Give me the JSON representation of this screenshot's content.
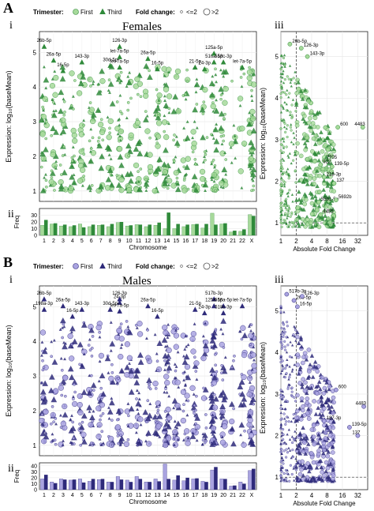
{
  "colors": {
    "female_first": "#a6d99a",
    "female_third": "#2f8a3a",
    "male_first": "#a9a3e0",
    "male_third": "#2e2a7a",
    "grid": "#e6e6e6",
    "panel_border": "#222222"
  },
  "chromosomes": [
    "1",
    "2",
    "3",
    "4",
    "5",
    "6",
    "7",
    "8",
    "9",
    "10",
    "11",
    "12",
    "13",
    "14",
    "15",
    "16",
    "17",
    "18",
    "19",
    "20",
    "21",
    "22",
    "X"
  ],
  "legend": {
    "trimester_title": "Trimester:",
    "first": "First",
    "third": "Third",
    "fold_title": "Fold change:",
    "small": "<=2",
    "large": ">2"
  },
  "panels": {
    "females": {
      "letter": "A",
      "title": "Females",
      "sub_i": "i",
      "sub_ii": "ii",
      "sub_iii": "iii",
      "ylabel": "Expression: log₁₀(baseMean)",
      "xlabel_chrom": "Chromosome",
      "ylabel_freq": "Freq",
      "xlabel_fold": "Absolute Fold Change",
      "yticks": [
        "1",
        "2",
        "3",
        "4",
        "5"
      ],
      "freq_ticks": [
        "0",
        "10",
        "20",
        "30"
      ],
      "fold_ticks": [
        "1",
        "2",
        "4",
        "8",
        "16",
        "32"
      ],
      "chrom_labels": [
        "26b-5p",
        "26a-5p",
        "16-5p",
        "143-3p",
        "126-3p",
        "let-7a-5p",
        "30d-5p",
        "let-7a-5p",
        "26a-5p",
        "16-5p",
        "21-5p",
        "516a-5p",
        "24-3p",
        "125a-5p",
        "518c-3p",
        "let-7a-5p"
      ],
      "fold_labels": [
        "26b-5p",
        "126-3p",
        "143-3p",
        "600",
        "4483",
        "7705",
        "922",
        "139-5p",
        "218-3p",
        "137",
        "5591-5p",
        "5692b",
        "4455"
      ]
    },
    "males": {
      "letter": "B",
      "title": "Males",
      "sub_i": "i",
      "sub_ii": "ii",
      "sub_iii": "iii",
      "ylabel": "Expression: log₁₀(baseMean)",
      "xlabel_chrom": "Chromosome",
      "ylabel_freq": "Freq",
      "xlabel_fold": "Absolute Fold Change",
      "yticks": [
        "1",
        "2",
        "3",
        "4",
        "5"
      ],
      "freq_ticks": [
        "0",
        "10",
        "20",
        "30",
        "40"
      ],
      "fold_ticks": [
        "1",
        "2",
        "4",
        "8",
        "16",
        "32"
      ],
      "chrom_labels": [
        "26b-5p",
        "198a-3p",
        "26a-5p",
        "16-5p",
        "143-3p",
        "126-3p",
        "30d-5p",
        "24-3p",
        "let-7a-5p",
        "26a-5p",
        "16-5p",
        "517b-3p",
        "21-5p",
        "125a-5p",
        "24-3p",
        "516a-5p",
        "518c-3p",
        "let-7a-5p"
      ],
      "fold_labels": [
        "517b-3p",
        "26b-5p",
        "126-3p",
        "16-5p",
        "600",
        "4483",
        "187-3p",
        "139-5p",
        "137"
      ]
    }
  },
  "chart_data": [
    {
      "id": "females-freq",
      "type": "bar",
      "ylabel": "Freq",
      "xlabel": "Chromosome",
      "ylim": [
        0,
        40
      ],
      "categories": [
        "1",
        "2",
        "3",
        "4",
        "5",
        "6",
        "7",
        "8",
        "9",
        "10",
        "11",
        "12",
        "13",
        "14",
        "15",
        "16",
        "17",
        "18",
        "19",
        "20",
        "21",
        "22",
        "X"
      ],
      "series": [
        {
          "name": "First",
          "values": [
            15,
            17,
            14,
            13,
            17,
            13,
            15,
            13,
            19,
            14,
            16,
            13,
            15,
            10,
            10,
            13,
            16,
            11,
            33,
            17,
            5,
            6,
            31
          ]
        },
        {
          "name": "Third",
          "values": [
            23,
            18,
            16,
            15,
            12,
            16,
            16,
            17,
            20,
            15,
            16,
            16,
            19,
            34,
            17,
            16,
            17,
            17,
            16,
            18,
            7,
            9,
            29
          ]
        }
      ]
    },
    {
      "id": "males-freq",
      "type": "bar",
      "ylabel": "Freq",
      "xlabel": "Chromosome",
      "ylim": [
        0,
        45
      ],
      "categories": [
        "1",
        "2",
        "3",
        "4",
        "5",
        "6",
        "7",
        "8",
        "9",
        "10",
        "11",
        "12",
        "13",
        "14",
        "15",
        "16",
        "17",
        "18",
        "19",
        "20",
        "21",
        "22",
        "X"
      ],
      "series": [
        {
          "name": "First",
          "values": [
            18,
            13,
            18,
            16,
            18,
            14,
            17,
            13,
            22,
            16,
            22,
            13,
            18,
            43,
            16,
            15,
            18,
            14,
            33,
            18,
            6,
            13,
            32
          ]
        },
        {
          "name": "Third",
          "values": [
            25,
            11,
            17,
            17,
            12,
            18,
            18,
            13,
            17,
            13,
            18,
            13,
            14,
            18,
            24,
            20,
            19,
            13,
            38,
            18,
            7,
            10,
            35
          ]
        }
      ]
    },
    {
      "id": "females-chrom-scatter",
      "type": "scatter",
      "xlabel": "Chromosome",
      "ylabel": "Expression: log10(baseMean)",
      "ylim": [
        0.7,
        5.6
      ],
      "note_labels": [
        {
          "label": "26b-5p",
          "x": "1",
          "y": 5.3
        },
        {
          "label": "26a-5p",
          "x": "2",
          "y": 4.9
        },
        {
          "label": "16-5p",
          "x": "3",
          "y": 4.6
        },
        {
          "label": "143-3p",
          "x": "5",
          "y": 4.85
        },
        {
          "label": "126-3p",
          "x": "9",
          "y": 5.3
        },
        {
          "label": "let-7a-5p",
          "x": "9",
          "y": 5.0
        },
        {
          "label": "30d-5p",
          "x": "8",
          "y": 4.75
        },
        {
          "label": "let-7a-5p",
          "x": "9",
          "y": 4.7
        },
        {
          "label": "26a-5p",
          "x": "12",
          "y": 4.95
        },
        {
          "label": "16-5p",
          "x": "13",
          "y": 4.65
        },
        {
          "label": "21-5p",
          "x": "17",
          "y": 4.7
        },
        {
          "label": "516a-5p",
          "x": "19",
          "y": 4.85
        },
        {
          "label": "24-3p",
          "x": "18",
          "y": 4.65
        },
        {
          "label": "125a-5p",
          "x": "19",
          "y": 5.1
        },
        {
          "label": "518c-3p",
          "x": "20",
          "y": 4.85
        },
        {
          "label": "let-7a-5p",
          "x": "22",
          "y": 4.7
        }
      ]
    },
    {
      "id": "females-fold-scatter",
      "type": "scatter",
      "xscale": "log2",
      "xlabel": "Absolute Fold Change",
      "ylabel": "Expression: log10(baseMean)",
      "xlim": [
        1,
        50
      ],
      "ylim": [
        0.7,
        5.6
      ],
      "annotated": [
        {
          "label": "26b-5p",
          "x": 1.5,
          "y": 5.3
        },
        {
          "label": "126-3p",
          "x": 2.5,
          "y": 5.2
        },
        {
          "label": "143-3p",
          "x": 3.3,
          "y": 5.0
        },
        {
          "label": "600",
          "x": 13,
          "y": 3.3
        },
        {
          "label": "4483",
          "x": 40,
          "y": 3.3
        },
        {
          "label": "7705",
          "x": 7,
          "y": 2.5
        },
        {
          "label": "922",
          "x": 6,
          "y": 2.4
        },
        {
          "label": "139-5p",
          "x": 10,
          "y": 2.35
        },
        {
          "label": "218-3p",
          "x": 7,
          "y": 2.1
        },
        {
          "label": "137",
          "x": 11,
          "y": 1.95
        },
        {
          "label": "5591-5p",
          "x": 5.5,
          "y": 1.5
        },
        {
          "label": "5692b",
          "x": 12,
          "y": 1.55
        },
        {
          "label": "4455",
          "x": 6,
          "y": 1.2
        }
      ]
    },
    {
      "id": "males-chrom-scatter",
      "type": "scatter",
      "xlabel": "Chromosome",
      "ylabel": "Expression: log10(baseMean)",
      "ylim": [
        0.7,
        5.6
      ],
      "note_labels": [
        {
          "label": "26b-5p",
          "x": "1",
          "y": 5.35
        },
        {
          "label": "198a-3p",
          "x": "1",
          "y": 5.05
        },
        {
          "label": "26a-5p",
          "x": "3",
          "y": 5.15
        },
        {
          "label": "16-5p",
          "x": "4",
          "y": 4.85
        },
        {
          "label": "143-3p",
          "x": "5",
          "y": 5.05
        },
        {
          "label": "126-3p",
          "x": "9",
          "y": 5.35
        },
        {
          "label": "30d-5p",
          "x": "8",
          "y": 5.05
        },
        {
          "label": "24-3p",
          "x": "9",
          "y": 5.25
        },
        {
          "label": "let-7a-5p",
          "x": "9",
          "y": 5.0
        },
        {
          "label": "26a-5p",
          "x": "12",
          "y": 5.15
        },
        {
          "label": "16-5p",
          "x": "13",
          "y": 4.85
        },
        {
          "label": "517b-3p",
          "x": "19",
          "y": 5.35
        },
        {
          "label": "21-5p",
          "x": "17",
          "y": 5.05
        },
        {
          "label": "125a-5p",
          "x": "19",
          "y": 5.15
        },
        {
          "label": "24-3p",
          "x": "18",
          "y": 4.95
        },
        {
          "label": "516a-5p",
          "x": "20",
          "y": 5.15
        },
        {
          "label": "518c-3p",
          "x": "20",
          "y": 4.95
        },
        {
          "label": "let-7a-5p",
          "x": "22",
          "y": 5.15
        }
      ]
    },
    {
      "id": "males-fold-scatter",
      "type": "scatter",
      "xscale": "log2",
      "xlabel": "Absolute Fold Change",
      "ylabel": "Expression: log10(baseMean)",
      "xlim": [
        1,
        50
      ],
      "ylim": [
        0.7,
        5.6
      ],
      "annotated": [
        {
          "label": "517b-3p",
          "x": 1.3,
          "y": 5.4
        },
        {
          "label": "26b-5p",
          "x": 1.8,
          "y": 5.25
        },
        {
          "label": "126-3p",
          "x": 2.6,
          "y": 5.35
        },
        {
          "label": "16-5p",
          "x": 2.1,
          "y": 5.1
        },
        {
          "label": "600",
          "x": 12,
          "y": 3.1
        },
        {
          "label": "4483",
          "x": 42,
          "y": 2.7
        },
        {
          "label": "187-3p",
          "x": 7,
          "y": 2.35
        },
        {
          "label": "139-5p",
          "x": 22,
          "y": 2.2
        },
        {
          "label": "137",
          "x": 32,
          "y": 2.0
        }
      ]
    }
  ]
}
